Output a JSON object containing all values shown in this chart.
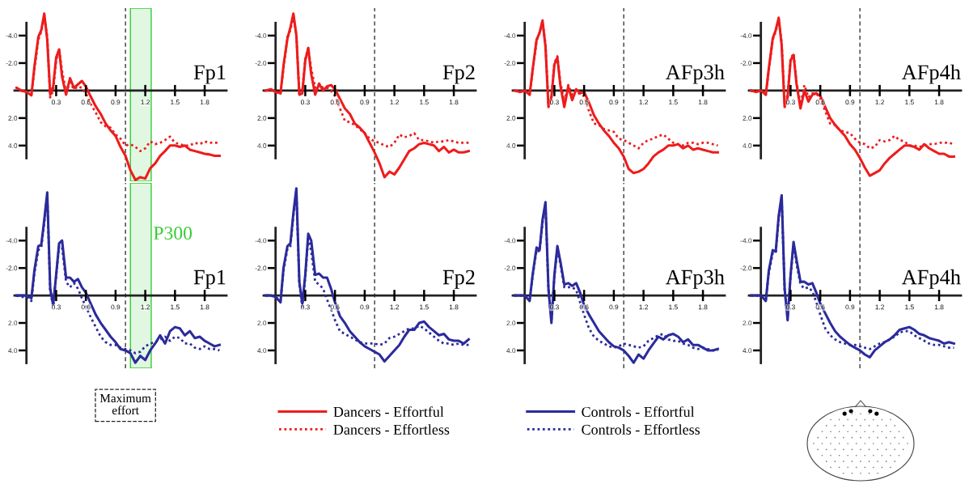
{
  "chart_data": [
    {
      "type": "line",
      "title": "Fp1",
      "x": [
        -0.1,
        -0.05,
        0,
        0.05,
        0.08,
        0.12,
        0.15,
        0.18,
        0.21,
        0.24,
        0.27,
        0.3,
        0.33,
        0.36,
        0.4,
        0.44,
        0.48,
        0.52,
        0.56,
        0.6,
        0.65,
        0.7,
        0.75,
        0.8,
        0.85,
        0.9,
        0.95,
        1.0,
        1.05,
        1.1,
        1.15,
        1.2,
        1.25,
        1.3,
        1.35,
        1.4,
        1.45,
        1.5,
        1.55,
        1.6,
        1.65,
        1.7,
        1.75,
        1.8,
        1.85,
        1.9,
        1.95
      ],
      "xlim": [
        -0.12,
        2.02
      ],
      "ylim": [
        6.6,
        -6
      ],
      "xticks": [
        0.3,
        0.6,
        0.9,
        1.2,
        1.5,
        1.8
      ],
      "yticks": [
        {
          "value": -4,
          "label": "-4.0"
        },
        {
          "value": -2,
          "label": "-2.0"
        },
        {
          "value": 2,
          "label": "2.0"
        },
        {
          "value": 4,
          "label": "4.0"
        }
      ],
      "legend": "bottom",
      "ref_lines": [
        {
          "axis": "x",
          "value": 1.0,
          "color": "#222222",
          "line_style": "dashed"
        }
      ],
      "bands": [
        {
          "axis": "x",
          "from": 1.05,
          "to": 1.26,
          "color": "#33cc33"
        }
      ],
      "series": [
        {
          "name": "Dancers - Effortful",
          "color": "#ee1c1c",
          "line_style": "solid",
          "values": [
            -0.2,
            0.0,
            0.1,
            0.35,
            -1.7,
            -3.9,
            -4.4,
            -5.6,
            -3.7,
            0.3,
            -0.3,
            -2.4,
            -3.0,
            -1.0,
            0.3,
            -0.9,
            -0.2,
            -0.45,
            -0.7,
            -0.3,
            0.45,
            1.15,
            1.7,
            2.4,
            2.9,
            3.3,
            4.1,
            4.75,
            5.8,
            6.5,
            6.3,
            6.4,
            5.65,
            5.3,
            4.75,
            4.4,
            4.0,
            4.0,
            4.1,
            4.0,
            4.3,
            4.4,
            4.5,
            4.6,
            4.65,
            4.75,
            4.75
          ]
        },
        {
          "name": "Dancers - Effortless",
          "color": "#ee1c1c",
          "line_style": "dotted",
          "values": [
            -0.2,
            0.0,
            0.1,
            0.3,
            -1.5,
            -3.7,
            -4.3,
            -5.4,
            -3.9,
            0.5,
            0.0,
            -2.2,
            -3.0,
            -1.4,
            0.1,
            -0.6,
            -0.1,
            -0.3,
            -0.2,
            0.2,
            1.0,
            1.6,
            2.3,
            2.6,
            2.7,
            3.2,
            3.5,
            4.0,
            3.9,
            4.1,
            4.4,
            4.2,
            3.7,
            3.9,
            3.8,
            3.6,
            3.35,
            3.8,
            3.9,
            4.0,
            4.0,
            3.8,
            3.9,
            3.7,
            3.8,
            3.8,
            3.8
          ]
        }
      ]
    },
    {
      "type": "line",
      "title": "Fp2",
      "x": [
        -0.1,
        -0.05,
        0,
        0.05,
        0.08,
        0.12,
        0.15,
        0.18,
        0.21,
        0.24,
        0.27,
        0.3,
        0.33,
        0.36,
        0.4,
        0.44,
        0.48,
        0.52,
        0.56,
        0.6,
        0.65,
        0.7,
        0.75,
        0.8,
        0.85,
        0.9,
        0.95,
        1.0,
        1.05,
        1.1,
        1.15,
        1.2,
        1.25,
        1.3,
        1.35,
        1.4,
        1.45,
        1.5,
        1.55,
        1.6,
        1.65,
        1.7,
        1.75,
        1.8,
        1.85,
        1.9,
        1.95
      ],
      "xlim": [
        -0.12,
        2.02
      ],
      "ylim": [
        6.6,
        -6
      ],
      "xticks": [
        0.3,
        0.6,
        0.9,
        1.2,
        1.5,
        1.8
      ],
      "yticks": [
        {
          "value": -4,
          "label": "-4.0"
        },
        {
          "value": -2,
          "label": "-2.0"
        },
        {
          "value": 2,
          "label": "2.0"
        },
        {
          "value": 4,
          "label": "4.0"
        }
      ],
      "ref_lines": [
        {
          "axis": "x",
          "value": 1.0,
          "color": "#222222",
          "line_style": "dashed"
        }
      ],
      "series": [
        {
          "name": "Dancers - Effortful",
          "color": "#ee1c1c",
          "line_style": "solid",
          "values": [
            0.0,
            -0.1,
            0.1,
            0.2,
            -1.8,
            -3.8,
            -4.6,
            -5.6,
            -4.0,
            0.3,
            0.2,
            -2.2,
            -3.1,
            -1.2,
            0.3,
            -0.5,
            0.0,
            -0.3,
            -0.4,
            -0.1,
            0.6,
            1.3,
            1.7,
            2.4,
            2.7,
            3.1,
            3.8,
            4.5,
            5.3,
            6.3,
            5.9,
            6.1,
            5.6,
            5.0,
            4.4,
            4.2,
            3.9,
            3.8,
            3.9,
            4.0,
            4.4,
            4.1,
            4.5,
            4.3,
            4.5,
            4.5,
            4.4
          ]
        },
        {
          "name": "Dancers - Effortless",
          "color": "#ee1c1c",
          "line_style": "dotted",
          "values": [
            0.0,
            -0.1,
            0.1,
            0.2,
            -1.6,
            -3.9,
            -4.4,
            -5.4,
            -4.1,
            0.2,
            0.0,
            -2.3,
            -3.1,
            -1.6,
            -0.2,
            -0.5,
            -0.2,
            -0.2,
            0.0,
            0.4,
            1.3,
            2.2,
            2.3,
            2.5,
            2.8,
            3.1,
            3.5,
            3.7,
            3.8,
            4.0,
            4.1,
            3.8,
            3.2,
            3.4,
            3.3,
            3.1,
            3.6,
            3.6,
            3.7,
            3.8,
            3.7,
            3.7,
            3.6,
            3.7,
            3.8,
            3.8,
            3.8
          ]
        }
      ]
    },
    {
      "type": "line",
      "title": "AFp3h",
      "x": [
        -0.1,
        -0.05,
        0,
        0.05,
        0.08,
        0.12,
        0.15,
        0.18,
        0.21,
        0.24,
        0.27,
        0.3,
        0.33,
        0.36,
        0.4,
        0.44,
        0.48,
        0.52,
        0.56,
        0.6,
        0.65,
        0.7,
        0.75,
        0.8,
        0.85,
        0.9,
        0.95,
        1.0,
        1.05,
        1.1,
        1.15,
        1.2,
        1.25,
        1.3,
        1.35,
        1.4,
        1.45,
        1.5,
        1.55,
        1.6,
        1.65,
        1.7,
        1.75,
        1.8,
        1.85,
        1.9,
        1.95
      ],
      "xlim": [
        -0.12,
        2.02
      ],
      "ylim": [
        6.6,
        -6
      ],
      "xticks": [
        0.3,
        0.6,
        0.9,
        1.2,
        1.5,
        1.8
      ],
      "yticks": [
        {
          "value": -4,
          "label": "-4.0"
        },
        {
          "value": -2,
          "label": "-2.0"
        },
        {
          "value": 2,
          "label": "2.0"
        },
        {
          "value": 4,
          "label": "4.0"
        }
      ],
      "ref_lines": [
        {
          "axis": "x",
          "value": 1.0,
          "color": "#222222",
          "line_style": "dashed"
        }
      ],
      "series": [
        {
          "name": "Dancers - Effortful",
          "color": "#ee1c1c",
          "line_style": "solid",
          "values": [
            0.0,
            0.1,
            0.0,
            0.3,
            -1.5,
            -3.7,
            -4.2,
            -5.1,
            -3.2,
            1.2,
            0.5,
            -1.9,
            -2.4,
            -0.4,
            1.2,
            -0.3,
            0.7,
            -0.1,
            0.2,
            0.1,
            0.9,
            1.8,
            2.4,
            2.9,
            3.3,
            3.8,
            4.2,
            4.8,
            5.7,
            6.0,
            5.9,
            5.7,
            5.3,
            4.8,
            4.5,
            4.3,
            4.0,
            4.0,
            3.9,
            4.2,
            4.0,
            4.3,
            4.2,
            4.3,
            4.4,
            4.5,
            4.5
          ]
        },
        {
          "name": "Dancers - Effortless",
          "color": "#ee1c1c",
          "line_style": "dotted",
          "values": [
            0.0,
            0.1,
            0.0,
            0.3,
            -1.4,
            -3.6,
            -4.2,
            -5.0,
            -3.4,
            1.0,
            0.4,
            -2.0,
            -2.5,
            -0.6,
            0.8,
            -0.4,
            0.3,
            0.0,
            0.3,
            0.4,
            1.5,
            2.4,
            2.5,
            2.8,
            2.9,
            3.0,
            3.5,
            3.6,
            3.8,
            4.0,
            4.2,
            3.8,
            3.6,
            3.5,
            3.3,
            3.2,
            3.5,
            3.8,
            3.9,
            4.0,
            3.8,
            3.8,
            3.9,
            3.8,
            3.8,
            3.9,
            4.0
          ]
        }
      ]
    },
    {
      "type": "line",
      "title": "AFp4h",
      "x": [
        -0.1,
        -0.05,
        0,
        0.05,
        0.08,
        0.12,
        0.15,
        0.18,
        0.21,
        0.24,
        0.27,
        0.3,
        0.33,
        0.36,
        0.4,
        0.44,
        0.48,
        0.52,
        0.56,
        0.6,
        0.65,
        0.7,
        0.75,
        0.8,
        0.85,
        0.9,
        0.95,
        1.0,
        1.05,
        1.1,
        1.15,
        1.2,
        1.25,
        1.3,
        1.35,
        1.4,
        1.45,
        1.5,
        1.55,
        1.6,
        1.65,
        1.7,
        1.75,
        1.8,
        1.85,
        1.9,
        1.95
      ],
      "xlim": [
        -0.12,
        2.02
      ],
      "ylim": [
        6.6,
        -6
      ],
      "xticks": [
        0.3,
        0.6,
        0.9,
        1.2,
        1.5,
        1.8
      ],
      "yticks": [
        {
          "value": -4,
          "label": "-4.0"
        },
        {
          "value": -2,
          "label": "-2.0"
        },
        {
          "value": 2,
          "label": "2.0"
        },
        {
          "value": 4,
          "label": "4.0"
        }
      ],
      "ref_lines": [
        {
          "axis": "x",
          "value": 1.0,
          "color": "#222222",
          "line_style": "dashed"
        }
      ],
      "series": [
        {
          "name": "Dancers - Effortful",
          "color": "#ee1c1c",
          "line_style": "solid",
          "values": [
            0.0,
            0.1,
            0.0,
            0.3,
            -1.6,
            -3.8,
            -4.4,
            -5.3,
            -3.3,
            1.2,
            0.5,
            -2.2,
            -2.6,
            -0.5,
            1.3,
            0.0,
            0.8,
            0.3,
            0.2,
            0.4,
            1.2,
            2.0,
            2.5,
            2.9,
            3.3,
            3.9,
            4.3,
            4.9,
            5.6,
            6.2,
            6.0,
            5.8,
            5.3,
            4.9,
            4.6,
            4.3,
            4.0,
            4.0,
            4.1,
            4.3,
            3.9,
            4.2,
            4.4,
            4.6,
            4.6,
            4.8,
            4.8
          ]
        },
        {
          "name": "Dancers - Effortless",
          "color": "#ee1c1c",
          "line_style": "dotted",
          "values": [
            0.0,
            0.1,
            0.0,
            0.3,
            -1.5,
            -3.7,
            -4.3,
            -5.2,
            -3.5,
            1.0,
            0.3,
            -2.3,
            -2.7,
            -0.6,
            1.0,
            -0.4,
            0.5,
            0.2,
            0.2,
            0.6,
            1.5,
            2.4,
            2.5,
            2.9,
            3.0,
            3.1,
            3.5,
            3.8,
            3.9,
            4.2,
            4.1,
            3.6,
            3.7,
            3.6,
            3.3,
            3.6,
            3.7,
            4.0,
            4.0,
            4.1,
            4.0,
            3.9,
            3.9,
            3.8,
            3.8,
            3.8,
            3.9
          ]
        }
      ]
    },
    {
      "type": "line",
      "title": "Fp1",
      "x": [
        -0.1,
        -0.05,
        0,
        0.05,
        0.08,
        0.12,
        0.15,
        0.18,
        0.21,
        0.24,
        0.27,
        0.3,
        0.33,
        0.36,
        0.4,
        0.44,
        0.48,
        0.52,
        0.56,
        0.6,
        0.65,
        0.7,
        0.75,
        0.8,
        0.85,
        0.9,
        0.95,
        1.0,
        1.05,
        1.1,
        1.15,
        1.2,
        1.25,
        1.3,
        1.35,
        1.4,
        1.45,
        1.5,
        1.55,
        1.6,
        1.65,
        1.7,
        1.75,
        1.8,
        1.85,
        1.9,
        1.95
      ],
      "xlim": [
        -0.12,
        2.02
      ],
      "ylim": [
        5.3,
        -8.2
      ],
      "xticks": [
        0.3,
        0.6,
        0.9,
        1.2,
        1.5,
        1.8
      ],
      "yticks": [
        {
          "value": -4,
          "label": "-4.0"
        },
        {
          "value": -2,
          "label": "-2.0"
        },
        {
          "value": 2,
          "label": "2.0"
        },
        {
          "value": 4,
          "label": "4.0"
        }
      ],
      "legend": "bottom",
      "annotations": [
        "Maximum\neffort"
      ],
      "ref_lines": [
        {
          "axis": "x",
          "value": 1.0,
          "color": "#222222",
          "line_style": "dashed"
        }
      ],
      "bands": [
        {
          "axis": "x",
          "from": 1.05,
          "to": 1.26,
          "color": "#33cc33",
          "label": "P300"
        }
      ],
      "series": [
        {
          "name": "Controls - Effortful",
          "color": "#2b2b9c",
          "line_style": "solid",
          "values": [
            0.0,
            0.0,
            0.0,
            0.2,
            -1.8,
            -3.6,
            -3.7,
            -5.5,
            -7.5,
            -0.5,
            0.7,
            -1.5,
            -3.8,
            -4.0,
            -1.3,
            -1.3,
            -1.0,
            -1.2,
            -0.6,
            -0.2,
            0.6,
            1.4,
            2.0,
            2.5,
            3.0,
            3.4,
            3.9,
            4.0,
            4.2,
            4.9,
            4.4,
            4.7,
            4.0,
            3.5,
            2.9,
            3.5,
            2.6,
            2.3,
            2.4,
            2.9,
            2.6,
            3.1,
            3.0,
            3.3,
            3.5,
            3.7,
            3.6
          ]
        },
        {
          "name": "Controls - Effortless",
          "color": "#2b2b9c",
          "line_style": "dotted",
          "values": [
            0.0,
            0.1,
            0.1,
            0.4,
            -1.6,
            -3.3,
            -3.5,
            -5.3,
            -7.3,
            -0.3,
            0.8,
            -1.4,
            -3.6,
            -3.5,
            -1.0,
            -0.6,
            -0.9,
            -0.5,
            0.2,
            0.8,
            1.6,
            2.3,
            3.0,
            3.4,
            3.6,
            3.6,
            3.8,
            3.9,
            4.0,
            4.2,
            4.1,
            3.7,
            3.5,
            3.4,
            3.2,
            3.0,
            3.3,
            3.0,
            3.1,
            3.5,
            3.5,
            3.8,
            3.9,
            3.7,
            3.9,
            3.9,
            4.0
          ]
        }
      ]
    },
    {
      "type": "line",
      "title": "Fp2",
      "x": [
        -0.1,
        -0.05,
        0,
        0.05,
        0.08,
        0.12,
        0.15,
        0.18,
        0.21,
        0.24,
        0.27,
        0.3,
        0.33,
        0.36,
        0.4,
        0.44,
        0.48,
        0.52,
        0.56,
        0.6,
        0.65,
        0.7,
        0.75,
        0.8,
        0.85,
        0.9,
        0.95,
        1.0,
        1.05,
        1.1,
        1.15,
        1.2,
        1.25,
        1.3,
        1.35,
        1.4,
        1.45,
        1.5,
        1.55,
        1.6,
        1.65,
        1.7,
        1.75,
        1.8,
        1.85,
        1.9,
        1.95
      ],
      "xlim": [
        -0.12,
        2.02
      ],
      "ylim": [
        5.3,
        -8.2
      ],
      "xticks": [
        0.3,
        0.6,
        0.9,
        1.2,
        1.5,
        1.8
      ],
      "yticks": [
        {
          "value": -4,
          "label": "-4.0"
        },
        {
          "value": -2,
          "label": "-2.0"
        },
        {
          "value": 2,
          "label": "2.0"
        },
        {
          "value": 4,
          "label": "4.0"
        }
      ],
      "ref_lines": [
        {
          "axis": "x",
          "value": 1.0,
          "color": "#222222",
          "line_style": "dashed"
        }
      ],
      "series": [
        {
          "name": "Controls - Effortful",
          "color": "#2b2b9c",
          "line_style": "solid",
          "values": [
            0.0,
            0.0,
            0.1,
            0.5,
            -2.0,
            -3.6,
            -3.8,
            -6.0,
            -7.8,
            -1.0,
            0.6,
            -1.5,
            -4.5,
            -4.0,
            -1.5,
            -1.6,
            -1.3,
            -1.3,
            -0.5,
            0.5,
            1.5,
            2.0,
            2.6,
            3.0,
            3.4,
            3.7,
            3.9,
            4.1,
            4.3,
            4.8,
            4.4,
            4.0,
            3.6,
            3.0,
            2.5,
            2.5,
            2.0,
            1.9,
            2.3,
            2.6,
            2.9,
            2.8,
            3.2,
            3.3,
            3.3,
            3.5,
            3.2
          ]
        },
        {
          "name": "Controls - Effortless",
          "color": "#2b2b9c",
          "line_style": "dotted",
          "values": [
            0.0,
            0.0,
            0.1,
            0.4,
            -1.8,
            -3.4,
            -3.6,
            -5.8,
            -7.6,
            -0.8,
            0.8,
            -1.3,
            -4.3,
            -3.2,
            -1.0,
            -0.8,
            -0.5,
            0.3,
            1.0,
            1.8,
            2.6,
            2.8,
            3.0,
            3.2,
            3.4,
            3.5,
            3.5,
            3.5,
            3.6,
            3.5,
            3.1,
            3.0,
            2.8,
            2.6,
            2.4,
            2.4,
            2.2,
            2.4,
            2.7,
            3.0,
            3.3,
            3.5,
            3.5,
            3.6,
            3.5,
            3.6,
            3.6
          ]
        }
      ]
    },
    {
      "type": "line",
      "title": "AFp3h",
      "x": [
        -0.1,
        -0.05,
        0,
        0.05,
        0.08,
        0.12,
        0.15,
        0.18,
        0.21,
        0.24,
        0.27,
        0.3,
        0.33,
        0.36,
        0.4,
        0.44,
        0.48,
        0.52,
        0.56,
        0.6,
        0.65,
        0.7,
        0.75,
        0.8,
        0.85,
        0.9,
        0.95,
        1.0,
        1.05,
        1.1,
        1.15,
        1.2,
        1.25,
        1.3,
        1.35,
        1.4,
        1.45,
        1.5,
        1.55,
        1.6,
        1.65,
        1.7,
        1.75,
        1.8,
        1.85,
        1.9,
        1.95
      ],
      "xlim": [
        -0.12,
        2.02
      ],
      "ylim": [
        5.3,
        -8.2
      ],
      "xticks": [
        0.3,
        0.6,
        0.9,
        1.2,
        1.5,
        1.8
      ],
      "yticks": [
        {
          "value": -4,
          "label": "-4.0"
        },
        {
          "value": -2,
          "label": "-2.0"
        },
        {
          "value": 2,
          "label": "2.0"
        },
        {
          "value": 4,
          "label": "4.0"
        }
      ],
      "ref_lines": [
        {
          "axis": "x",
          "value": 1.0,
          "color": "#222222",
          "line_style": "dashed"
        }
      ],
      "series": [
        {
          "name": "Controls - Effortful",
          "color": "#2b2b9c",
          "line_style": "solid",
          "values": [
            0.0,
            0.0,
            0.0,
            0.4,
            -1.5,
            -3.5,
            -3.3,
            -5.5,
            -6.8,
            -0.5,
            2.0,
            -1.5,
            -3.6,
            -2.5,
            -0.8,
            -0.9,
            -0.7,
            -0.9,
            -0.2,
            0.7,
            1.4,
            2.0,
            2.6,
            3.0,
            3.4,
            3.7,
            3.8,
            4.0,
            4.4,
            4.9,
            4.3,
            4.6,
            4.0,
            3.5,
            3.0,
            3.2,
            2.9,
            2.8,
            3.0,
            3.4,
            3.2,
            3.6,
            3.6,
            3.8,
            4.0,
            4.0,
            3.9
          ]
        },
        {
          "name": "Controls - Effortless",
          "color": "#2b2b9c",
          "line_style": "dotted",
          "values": [
            0.0,
            0.0,
            0.0,
            0.3,
            -1.4,
            -3.3,
            -3.2,
            -5.3,
            -6.6,
            -0.4,
            1.8,
            -1.4,
            -3.4,
            -2.3,
            -0.6,
            -0.6,
            -0.6,
            -0.4,
            0.5,
            1.4,
            2.4,
            3.0,
            3.3,
            3.5,
            3.7,
            3.8,
            3.7,
            3.5,
            3.6,
            3.7,
            3.8,
            3.7,
            3.3,
            3.1,
            2.9,
            2.8,
            3.2,
            3.3,
            3.3,
            3.5,
            3.6,
            3.8,
            3.9,
            3.8,
            3.9,
            4.0,
            4.0
          ]
        }
      ]
    },
    {
      "type": "line",
      "title": "AFp4h",
      "x": [
        -0.1,
        -0.05,
        0,
        0.05,
        0.08,
        0.12,
        0.15,
        0.18,
        0.21,
        0.24,
        0.27,
        0.3,
        0.33,
        0.36,
        0.4,
        0.44,
        0.48,
        0.52,
        0.56,
        0.6,
        0.65,
        0.7,
        0.75,
        0.8,
        0.85,
        0.9,
        0.95,
        1.0,
        1.05,
        1.1,
        1.15,
        1.2,
        1.25,
        1.3,
        1.35,
        1.4,
        1.45,
        1.5,
        1.55,
        1.6,
        1.65,
        1.7,
        1.75,
        1.8,
        1.85,
        1.9,
        1.95
      ],
      "xlim": [
        -0.12,
        2.02
      ],
      "ylim": [
        5.3,
        -8.2
      ],
      "xticks": [
        0.3,
        0.6,
        0.9,
        1.2,
        1.5,
        1.8
      ],
      "yticks": [
        {
          "value": -4,
          "label": "-4.0"
        },
        {
          "value": -2,
          "label": "-2.0"
        },
        {
          "value": 2,
          "label": "2.0"
        },
        {
          "value": 4,
          "label": "4.0"
        }
      ],
      "ref_lines": [
        {
          "axis": "x",
          "value": 1.0,
          "color": "#222222",
          "line_style": "dashed"
        }
      ],
      "series": [
        {
          "name": "Controls - Effortful",
          "color": "#2b2b9c",
          "line_style": "solid",
          "values": [
            0.0,
            0.0,
            0.0,
            0.4,
            -1.8,
            -3.3,
            -3.2,
            -5.8,
            -7.3,
            -0.5,
            1.8,
            -1.5,
            -3.9,
            -2.6,
            -1.0,
            -1.0,
            -0.8,
            -0.9,
            -0.2,
            0.6,
            1.3,
            2.0,
            2.6,
            3.0,
            3.3,
            3.6,
            3.8,
            4.0,
            4.3,
            4.5,
            4.0,
            3.7,
            3.4,
            3.2,
            2.9,
            2.5,
            2.4,
            2.3,
            2.5,
            2.8,
            2.9,
            3.1,
            3.2,
            3.3,
            3.5,
            3.4,
            3.5
          ]
        },
        {
          "name": "Controls - Effortless",
          "color": "#2b2b9c",
          "line_style": "dotted",
          "values": [
            0.0,
            0.0,
            0.0,
            0.3,
            -1.6,
            -3.1,
            -3.1,
            -5.6,
            -7.1,
            -0.4,
            1.6,
            -1.4,
            -3.7,
            -2.3,
            -0.8,
            -0.5,
            -0.6,
            -0.3,
            0.5,
            1.4,
            2.4,
            2.9,
            3.2,
            3.4,
            3.5,
            3.6,
            3.6,
            3.7,
            3.8,
            3.9,
            3.7,
            3.5,
            3.4,
            3.2,
            3.0,
            2.7,
            2.6,
            2.6,
            2.9,
            3.1,
            3.3,
            3.5,
            3.6,
            3.6,
            3.7,
            3.8,
            3.8
          ]
        }
      ]
    }
  ]
}
